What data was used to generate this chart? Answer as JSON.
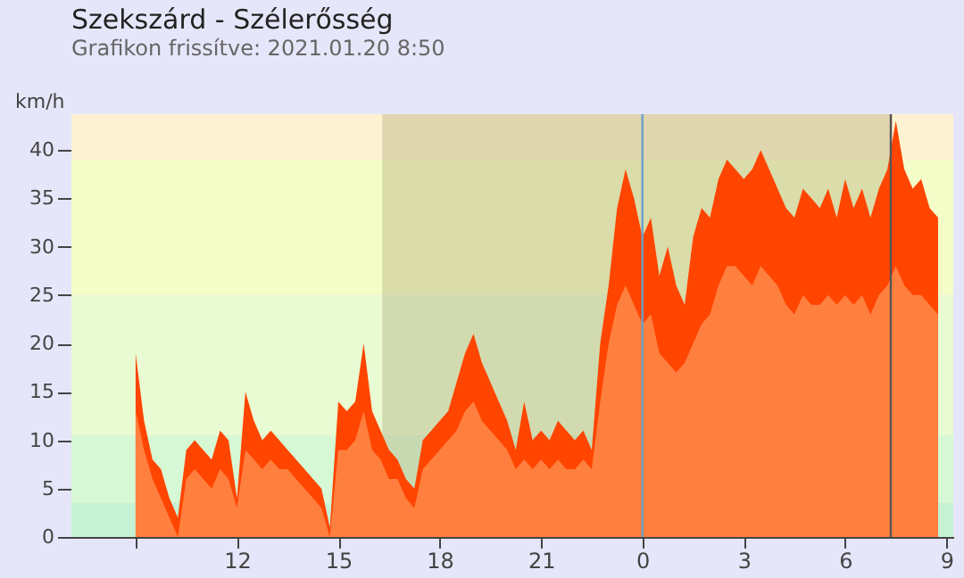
{
  "chart_data": {
    "type": "area",
    "title": "Szekszárd - Szélerősség",
    "subtitle": "Grafikon frissítve: 2021.01.20 8:50",
    "ylabel": "km/h",
    "x": [
      "2021-01-19T09:00",
      "2021-01-19T09:15",
      "2021-01-19T09:30",
      "2021-01-19T09:45",
      "2021-01-19T10:00",
      "2021-01-19T10:15",
      "2021-01-19T10:30",
      "2021-01-19T10:45",
      "2021-01-19T11:00",
      "2021-01-19T11:15",
      "2021-01-19T11:30",
      "2021-01-19T11:45",
      "2021-01-19T12:00",
      "2021-01-19T12:15",
      "2021-01-19T12:30",
      "2021-01-19T12:45",
      "2021-01-19T13:00",
      "2021-01-19T13:15",
      "2021-01-19T13:30",
      "2021-01-19T13:45",
      "2021-01-19T14:00",
      "2021-01-19T14:15",
      "2021-01-19T14:30",
      "2021-01-19T14:45",
      "2021-01-19T15:00",
      "2021-01-19T15:15",
      "2021-01-19T15:30",
      "2021-01-19T15:45",
      "2021-01-19T16:00",
      "2021-01-19T16:15",
      "2021-01-19T16:30",
      "2021-01-19T16:45",
      "2021-01-19T17:00",
      "2021-01-19T17:15",
      "2021-01-19T17:30",
      "2021-01-19T17:45",
      "2021-01-19T18:00",
      "2021-01-19T18:15",
      "2021-01-19T18:30",
      "2021-01-19T18:45",
      "2021-01-19T19:00",
      "2021-01-19T19:15",
      "2021-01-19T19:30",
      "2021-01-19T19:45",
      "2021-01-19T20:00",
      "2021-01-19T20:15",
      "2021-01-19T20:30",
      "2021-01-19T20:45",
      "2021-01-19T21:00",
      "2021-01-19T21:15",
      "2021-01-19T21:30",
      "2021-01-19T21:45",
      "2021-01-19T22:00",
      "2021-01-19T22:15",
      "2021-01-19T22:30",
      "2021-01-19T22:45",
      "2021-01-19T23:00",
      "2021-01-19T23:15",
      "2021-01-19T23:30",
      "2021-01-19T23:45",
      "2021-01-20T00:00",
      "2021-01-20T00:15",
      "2021-01-20T00:30",
      "2021-01-20T00:45",
      "2021-01-20T01:00",
      "2021-01-20T01:15",
      "2021-01-20T01:30",
      "2021-01-20T01:45",
      "2021-01-20T02:00",
      "2021-01-20T02:15",
      "2021-01-20T02:30",
      "2021-01-20T02:45",
      "2021-01-20T03:00",
      "2021-01-20T03:15",
      "2021-01-20T03:30",
      "2021-01-20T03:45",
      "2021-01-20T04:00",
      "2021-01-20T04:15",
      "2021-01-20T04:30",
      "2021-01-20T04:45",
      "2021-01-20T05:00",
      "2021-01-20T05:15",
      "2021-01-20T05:30",
      "2021-01-20T05:45",
      "2021-01-20T06:00",
      "2021-01-20T06:15",
      "2021-01-20T06:30",
      "2021-01-20T06:45",
      "2021-01-20T07:00",
      "2021-01-20T07:15",
      "2021-01-20T07:30",
      "2021-01-20T07:45",
      "2021-01-20T08:00",
      "2021-01-20T08:15",
      "2021-01-20T08:30",
      "2021-01-20T08:45"
    ],
    "series": [
      {
        "color": "#ff4500",
        "values": [
          19,
          12,
          8,
          7,
          4,
          2,
          9,
          10,
          9,
          8,
          11,
          10,
          4,
          15,
          12,
          10,
          11,
          10,
          9,
          8,
          7,
          6,
          5,
          1,
          14,
          13,
          14,
          20,
          13,
          11,
          9,
          8,
          6,
          5,
          10,
          11,
          12,
          13,
          16,
          19,
          21,
          18,
          16,
          14,
          12,
          9,
          14,
          10,
          11,
          10,
          12,
          11,
          10,
          11,
          9,
          20,
          26,
          34,
          38,
          35,
          31,
          33,
          27,
          30,
          26,
          24,
          31,
          34,
          33,
          37,
          39,
          38,
          37,
          38,
          40,
          38,
          36,
          34,
          33,
          36,
          35,
          34,
          36,
          33,
          37,
          34,
          36,
          33,
          36,
          38,
          43,
          38,
          36,
          37,
          34,
          33
        ]
      },
      {
        "color": "#ff7f3f",
        "values": [
          13,
          9,
          6,
          4,
          2,
          0,
          6,
          7,
          6,
          5,
          7,
          6,
          3,
          9,
          8,
          7,
          8,
          7,
          7,
          6,
          5,
          4,
          3,
          0,
          9,
          9,
          10,
          13,
          9,
          8,
          6,
          6,
          4,
          3,
          7,
          8,
          9,
          10,
          11,
          13,
          14,
          12,
          11,
          10,
          9,
          7,
          8,
          7,
          8,
          7,
          8,
          7,
          7,
          8,
          7,
          14,
          20,
          24,
          26,
          24,
          22,
          23,
          19,
          18,
          17,
          18,
          20,
          22,
          23,
          26,
          28,
          28,
          27,
          26,
          28,
          27,
          26,
          24,
          23,
          25,
          24,
          24,
          25,
          24,
          25,
          24,
          25,
          23,
          25,
          26,
          28,
          26,
          25,
          25,
          24,
          23
        ]
      }
    ],
    "xlim": [
      "2021-01-19T07:06",
      "2021-01-20T09:12"
    ],
    "xticks": [
      {
        "value": "2021-01-19T09:00",
        "label": null
      },
      {
        "value": "2021-01-19T12:00",
        "label": "12"
      },
      {
        "value": "2021-01-19T15:00",
        "label": "15"
      },
      {
        "value": "2021-01-19T18:00",
        "label": "18"
      },
      {
        "value": "2021-01-19T21:00",
        "label": "21"
      },
      {
        "value": "2021-01-20T00:00",
        "label": "0"
      },
      {
        "value": "2021-01-20T03:00",
        "label": "3"
      },
      {
        "value": "2021-01-20T06:00",
        "label": "6"
      },
      {
        "value": "2021-01-20T09:00",
        "label": "9"
      }
    ],
    "ylim": [
      0,
      43.7
    ],
    "yticks": [
      0,
      5,
      10,
      15,
      20,
      25,
      30,
      35,
      40
    ],
    "bands": [
      {
        "axis": "y",
        "from": 0,
        "to": 3.5,
        "color": "#c5f2d5"
      },
      {
        "axis": "y",
        "from": 3.5,
        "to": 10.5,
        "color": "#d7f8d4"
      },
      {
        "axis": "y",
        "from": 10.5,
        "to": 25,
        "color": "#e9fbd2"
      },
      {
        "axis": "y",
        "from": 25,
        "to": 39,
        "color": "#f4fcc8"
      },
      {
        "axis": "y",
        "from": 39,
        "to": 43.7,
        "color": "#fdf3d2"
      },
      {
        "axis": "x",
        "from": "2021-01-19T16:18",
        "to": "2021-01-20T07:24",
        "color": "#a8a070"
      }
    ],
    "ref_lines": [
      {
        "axis": "x",
        "value": "2021-01-20T00:00",
        "color": "#6aa0c8"
      },
      {
        "axis": "x",
        "value": "2021-01-20T07:21",
        "color": "#555555"
      }
    ],
    "grid": false
  }
}
